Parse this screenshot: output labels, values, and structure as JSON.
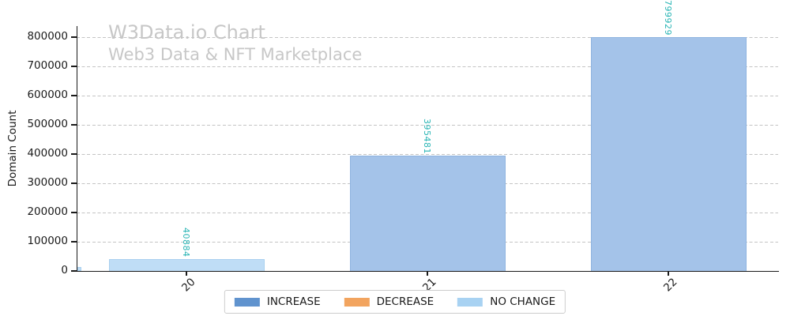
{
  "title": "W3Data.io Chart",
  "subtitle": "Web3 Data & NFT Marketplace",
  "chart_data": {
    "type": "bar",
    "categories": [
      "20",
      "21",
      "22"
    ],
    "values": [
      40884,
      395481,
      799929
    ],
    "bar_value_labels": [
      "40884",
      "395481",
      "799929"
    ],
    "bar_statuses": [
      "no_change",
      "increase",
      "increase"
    ],
    "title": "W3Data.io Chart",
    "subtitle": "Web3 Data & NFT Marketplace",
    "xlabel": "",
    "ylabel": "Domain Count",
    "ylim": [
      0,
      840000
    ],
    "yticks": [
      0,
      100000,
      200000,
      300000,
      400000,
      500000,
      600000,
      700000,
      800000
    ],
    "ytick_labels": [
      "0",
      "100000",
      "200000",
      "300000",
      "400000",
      "500000",
      "600000",
      "700000",
      "800000"
    ],
    "grid": "horizontal-dashed",
    "legend_position": "bottom-center",
    "partial_bar_at_left_edge": {
      "visible": true,
      "status": "no_change"
    }
  },
  "legend": {
    "items": [
      {
        "label": "INCREASE",
        "status": "increase",
        "color": "#6093ce"
      },
      {
        "label": "DECREASE",
        "status": "decrease",
        "color": "#f2a45f"
      },
      {
        "label": "NO CHANGE",
        "status": "no_change",
        "color": "#a8d2f2"
      }
    ]
  },
  "colors": {
    "increase": "#6093ce",
    "decrease": "#f2a45f",
    "no_change": "#a8d2f2",
    "bar_fill_increase": "#a4c3e9",
    "bar_edge_increase": "#8fb4e0",
    "bar_fill_no_change": "#bfddf6",
    "bar_edge_no_change": "#a9d0ef",
    "value_label": "#2ab5b5",
    "title_gray": "#c7c7c7",
    "gridline": "#c4c4c4",
    "axis_text": "#1a1a1a"
  }
}
